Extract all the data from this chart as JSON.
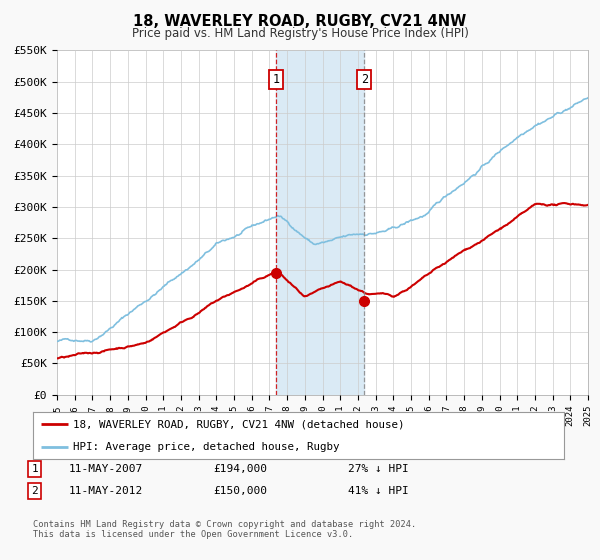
{
  "title": "18, WAVERLEY ROAD, RUGBY, CV21 4NW",
  "subtitle": "Price paid vs. HM Land Registry's House Price Index (HPI)",
  "ylim": [
    0,
    550000
  ],
  "yticks": [
    0,
    50000,
    100000,
    150000,
    200000,
    250000,
    300000,
    350000,
    400000,
    450000,
    500000,
    550000
  ],
  "ytick_labels": [
    "£0",
    "£50K",
    "£100K",
    "£150K",
    "£200K",
    "£250K",
    "£300K",
    "£350K",
    "£400K",
    "£450K",
    "£500K",
    "£550K"
  ],
  "background_color": "#f9f9f9",
  "plot_bg_color": "#ffffff",
  "grid_color": "#cccccc",
  "hpi_color": "#7fbfdf",
  "price_color": "#cc0000",
  "marker_color": "#cc0000",
  "shade_color": "#daeaf5",
  "event1_x": 2007.36,
  "event1_y": 194000,
  "event2_x": 2012.36,
  "event2_y": 150000,
  "legend_label_price": "18, WAVERLEY ROAD, RUGBY, CV21 4NW (detached house)",
  "legend_label_hpi": "HPI: Average price, detached house, Rugby",
  "annotation1_date": "11-MAY-2007",
  "annotation1_price": "£194,000",
  "annotation1_pct": "27% ↓ HPI",
  "annotation2_date": "11-MAY-2012",
  "annotation2_price": "£150,000",
  "annotation2_pct": "41% ↓ HPI",
  "footer": "Contains HM Land Registry data © Crown copyright and database right 2024.\nThis data is licensed under the Open Government Licence v3.0.",
  "xmin": 1995,
  "xmax": 2025
}
